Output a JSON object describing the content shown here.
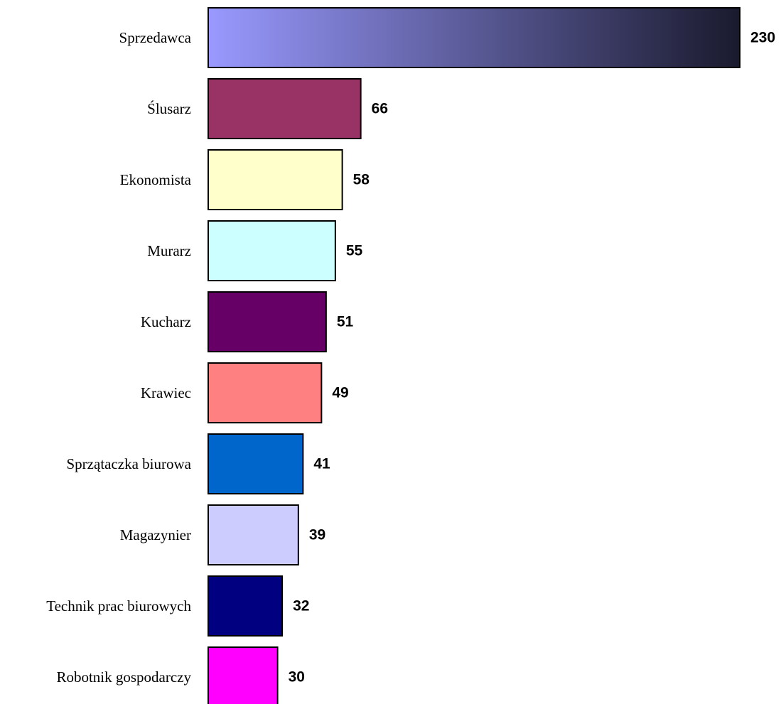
{
  "chart_data": {
    "type": "bar",
    "orientation": "horizontal",
    "categories": [
      "Sprzedawca",
      "Ślusarz",
      "Ekonomista",
      "Murarz",
      "Kucharz",
      "Krawiec",
      "Sprzątaczka biurowa",
      "Magazynier",
      "Technik prac biurowych",
      "Robotnik gospodarczy"
    ],
    "values": [
      230,
      66,
      58,
      55,
      51,
      49,
      41,
      39,
      32,
      30
    ],
    "colors": [
      "gradient:#9999ff-#1a1a2e",
      "#993366",
      "#ffffcc",
      "#ccffff",
      "#660066",
      "#ff8080",
      "#0066cc",
      "#ccccff",
      "#000080",
      "#ff00ff"
    ],
    "data_labels": [
      "230",
      "66",
      "58",
      "55",
      "51",
      "49",
      "41",
      "39",
      "32",
      "30"
    ],
    "xlim": [
      0,
      230
    ],
    "grid": false,
    "legend": "none"
  }
}
